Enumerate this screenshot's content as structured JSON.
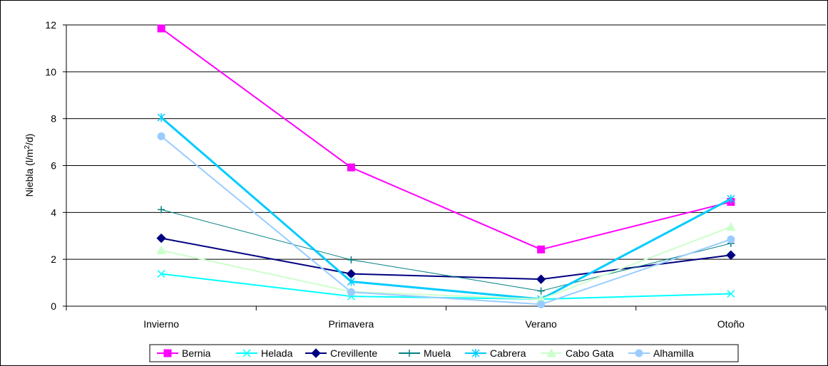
{
  "chart_data": {
    "type": "line",
    "title": "",
    "xlabel": "",
    "ylabel": "Niebla (l/m2/d)",
    "ylabel_parts": {
      "pre": "Niebla (l/m",
      "sup": "2",
      "post": "/d)"
    },
    "categories": [
      "Invierno",
      "Primavera",
      "Verano",
      "Otoño"
    ],
    "ylim": [
      0,
      12
    ],
    "yticks": [
      0,
      2,
      4,
      6,
      8,
      10,
      12
    ],
    "grid": true,
    "legend_position": "bottom",
    "series": [
      {
        "name": "Bernia",
        "color": "#ff00ff",
        "marker": "square",
        "values": [
          11.85,
          5.92,
          2.42,
          4.45
        ]
      },
      {
        "name": "Helada",
        "color": "#00ffff",
        "marker": "x",
        "values": [
          1.38,
          0.42,
          0.3,
          0.53
        ]
      },
      {
        "name": "Crevillente",
        "color": "#000080",
        "marker": "diamond",
        "values": [
          2.9,
          1.38,
          1.15,
          2.18
        ]
      },
      {
        "name": "Muela",
        "color": "#008080",
        "marker": "plus",
        "values": [
          4.12,
          1.98,
          0.65,
          2.68
        ]
      },
      {
        "name": "Cabrera",
        "color": "#00ccff",
        "marker": "asterisk",
        "values": [
          8.05,
          1.05,
          0.3,
          4.58
        ]
      },
      {
        "name": "Cabo Gata",
        "color": "#ccffcc",
        "marker": "triangle",
        "values": [
          2.38,
          0.62,
          0.3,
          3.38
        ]
      },
      {
        "name": "Alhamilla",
        "color": "#99ccff",
        "marker": "circle",
        "values": [
          7.25,
          0.6,
          0.08,
          2.85
        ]
      }
    ]
  }
}
